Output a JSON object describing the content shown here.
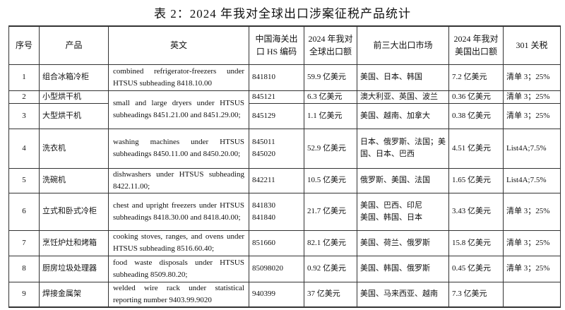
{
  "title": "表 2：2024 年我对全球出口涉案征税产品统计",
  "headers": [
    "序号",
    "产品",
    "英文",
    "中国海关出口 HS 编码",
    "2024 年我对全球出口额",
    "前三大出口市场",
    "2024 年我对美国出口额",
    "301 关税"
  ],
  "rows": [
    {
      "no": "1",
      "product": "组合冰箱冷柜",
      "english": "combined refrigerator-freezers under HTSUS subheading 8418.10.00",
      "hs": "841810",
      "global": "59.9 亿美元",
      "markets": "美国、日本、韩国",
      "us": "7.2 亿美元",
      "tariff": "清单 3；25%"
    },
    {
      "no": "2",
      "product": "小型烘干机",
      "english": "small and large dryers under HTSUS subheadings 8451.21.00 and 8451.29.00;",
      "hs": "845121",
      "global": "6.3 亿美元",
      "markets": "澳大利亚、英国、波兰",
      "us": "0.36 亿美元",
      "tariff": "清单 3；25%"
    },
    {
      "no": "3",
      "product": "大型烘干机",
      "hs": "845129",
      "global": "1.1 亿美元",
      "markets": "美国、越南、加拿大",
      "us": "0.38 亿美元",
      "tariff": "清单 3；25%"
    },
    {
      "no": "4",
      "product": "洗衣机",
      "english": "washing machines under HTSUS subheadings 8450.11.00 and 8450.20.00;",
      "hs": "845011\n845020",
      "global": "52.9 亿美元",
      "markets": "日本、俄罗斯、法国；美国、日本、巴西",
      "us": "4.51 亿美元",
      "tariff": "List4A;7.5%"
    },
    {
      "no": "5",
      "product": "洗碗机",
      "english": "dishwashers under HTSUS subheading 8422.11.00;",
      "hs": "842211",
      "global": "10.5 亿美元",
      "markets": "俄罗斯、美国、法国",
      "us": "1.65 亿美元",
      "tariff": "List4A;7.5%"
    },
    {
      "no": "6",
      "product": "立式和卧式冷柜",
      "english": "chest and upright freezers under HTSUS subheadings 8418.30.00 and 8418.40.00;",
      "hs": "841830\n841840",
      "global": "21.7 亿美元",
      "markets": "美国、巴西、印尼\n美国、韩国、日本",
      "us": "3.43 亿美元",
      "tariff": "清单 3；25%"
    },
    {
      "no": "7",
      "product": "烹饪炉灶和烤箱",
      "english": "cooking stoves, ranges, and ovens under HTSUS subheading 8516.60.40;",
      "hs": "851660",
      "global": "82.1 亿美元",
      "markets": "美国、荷兰、俄罗斯",
      "us": "15.8 亿美元",
      "tariff": "清单 3；25%"
    },
    {
      "no": "8",
      "product": "厨房垃圾处理器",
      "english": "food waste disposals under HTSUS subheading 8509.80.20;",
      "hs": "85098020",
      "global": "0.92 亿美元",
      "markets": "美国、韩国、俄罗斯",
      "us": "0.45 亿美元",
      "tariff": "清单 3；25%"
    },
    {
      "no": "9",
      "product": "焊接金属架",
      "english": "welded wire rack under statistical reporting number 9403.99.9020",
      "hs": "940399",
      "global": "37 亿美元",
      "markets": "美国、马来西亚、越南",
      "us": "7.3 亿美元",
      "tariff": ""
    }
  ]
}
